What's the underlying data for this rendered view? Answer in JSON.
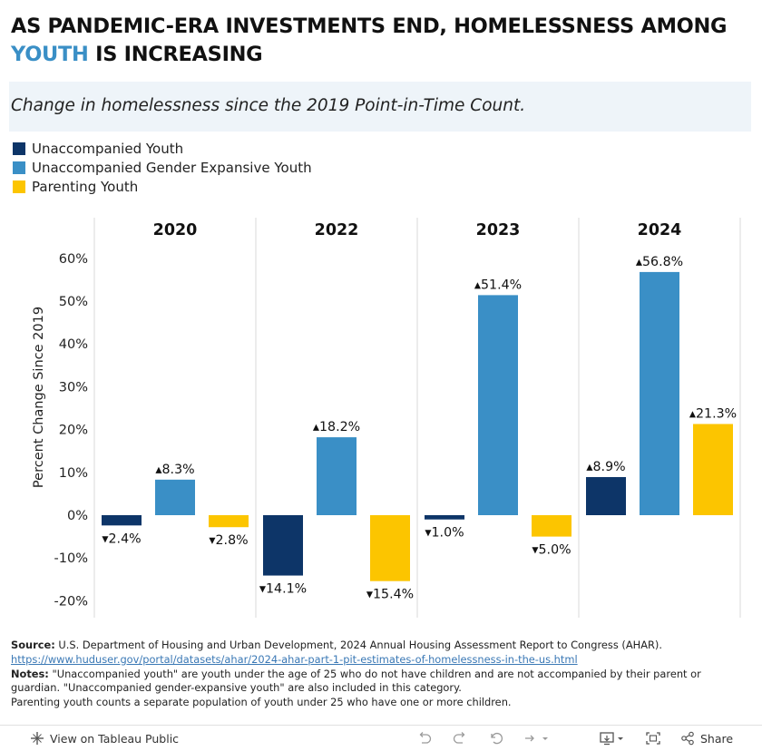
{
  "title": {
    "line1": "AS PANDEMIC-ERA INVESTMENTS END, HOMELESSNESS AMONG",
    "highlight": "YOUTH",
    "line2_rest": "IS INCREASING"
  },
  "subtitle": "Change in homelessness since the 2019 Point-in-Time Count.",
  "colors": {
    "unaccompanied_youth": "#0d3568",
    "gender_expansive_youth": "#3a8fc6",
    "parenting_youth": "#fcc500",
    "title_accent": "#3a8fc6",
    "subtitle_band": "#eef4f9"
  },
  "legend": [
    {
      "label": "Unaccompanied Youth",
      "color": "#0d3568"
    },
    {
      "label": "Unaccompanied Gender Expansive Youth",
      "color": "#3a8fc6"
    },
    {
      "label": "Parenting Youth",
      "color": "#fcc500"
    }
  ],
  "chart_data": {
    "type": "bar",
    "ylabel": "Percent Change Since 2019",
    "ylim": [
      -24,
      64
    ],
    "yticks": [
      -20,
      -10,
      0,
      10,
      20,
      30,
      40,
      50,
      60
    ],
    "ytick_labels": [
      "-20%",
      "-10%",
      "0%",
      "10%",
      "20%",
      "30%",
      "40%",
      "50%",
      "60%"
    ],
    "panels": [
      "2020",
      "2022",
      "2023",
      "2024"
    ],
    "series": [
      {
        "name": "Unaccompanied Youth",
        "values": [
          -2.4,
          -14.1,
          -1.0,
          8.9
        ]
      },
      {
        "name": "Unaccompanied Gender Expansive Youth",
        "values": [
          8.3,
          18.2,
          51.4,
          56.8
        ]
      },
      {
        "name": "Parenting Youth",
        "values": [
          -2.8,
          -15.4,
          -5.0,
          21.3
        ]
      }
    ],
    "data_labels": [
      [
        "▾2.4%",
        "▾14.1%",
        "▾1.0%",
        "▴8.9%"
      ],
      [
        "▴8.3%",
        "▴18.2%",
        "▴51.4%",
        "▴56.8%"
      ],
      [
        "▾2.8%",
        "▾15.4%",
        "▾5.0%",
        "▴21.3%"
      ]
    ],
    "grid": false,
    "legend_position": "top-left"
  },
  "footer": {
    "source_label": "Source:",
    "source_text": "U.S. Department of Housing and Urban Development, 2024 Annual Housing Assessment Report to Congress (AHAR).",
    "url": "https://www.huduser.gov/portal/datasets/ahar/2024-ahar-part-1-pit-estimates-of-homelessness-in-the-us.html",
    "notes_label": "Notes:",
    "notes_text": "\"Unaccompanied youth\" are youth under the age of 25 who do not have children and are not accompanied by their parent or guardian. \"Unaccompanied gender-expansive youth\" are also included in this category.",
    "notes_text2": "Parenting youth counts a separate population of youth under 25 who have one or more children."
  },
  "toolbar": {
    "view_label": "View on Tableau Public",
    "share_label": "Share",
    "icons": [
      "tableau-icon",
      "undo-icon",
      "redo-icon",
      "revert-icon",
      "refresh-icon",
      "download-icon",
      "fullscreen-icon",
      "share-icon"
    ]
  }
}
